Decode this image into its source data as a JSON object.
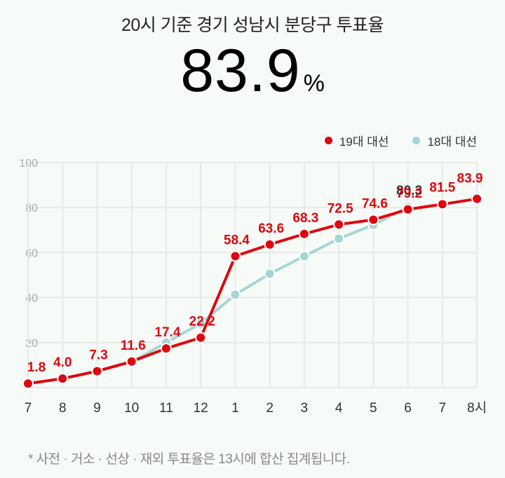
{
  "header": {
    "title": "20시 기준 경기 성남시 분당구 투표율",
    "turnout_value": "83.9",
    "turnout_unit": "%"
  },
  "legend": [
    {
      "label": "19대 대선",
      "color": "#e0060f"
    },
    {
      "label": "18대 대선",
      "color": "#a5d6d6"
    }
  ],
  "footnote": "* 사전 · 거소 · 선상 · 재외 투표율은 13시에 합산 집계됩니다.",
  "colors": {
    "series19": "#e0060f",
    "series18": "#a5d6d6",
    "grid": "#e6e9e6",
    "axis_text": "#aaaaaa",
    "tick_text": "#333333"
  },
  "chart_data": {
    "type": "line",
    "title": "20시 기준 경기 성남시 분당구 투표율",
    "xlabel": "",
    "ylabel": "",
    "categories": [
      "7",
      "8",
      "9",
      "10",
      "11",
      "12",
      "1",
      "2",
      "3",
      "4",
      "5",
      "6",
      "7",
      "8시"
    ],
    "ylim": [
      0,
      100
    ],
    "yticks": [
      20,
      40,
      60,
      80,
      100
    ],
    "grid": true,
    "legend_position": "top-right",
    "series": [
      {
        "name": "19대 대선",
        "values": [
          1.8,
          4.0,
          7.3,
          11.6,
          17.4,
          22.2,
          58.4,
          63.6,
          68.3,
          72.5,
          74.6,
          79.2,
          81.5,
          83.9
        ],
        "labels": [
          "1.8",
          "4.0",
          "7.3",
          "11.6",
          "17.4",
          "22.2",
          "58.4",
          "63.6",
          "68.3",
          "72.5",
          "74.6",
          "79.2",
          "81.5",
          "83.9"
        ]
      },
      {
        "name": "18대 대선",
        "values": [
          1.8,
          4.0,
          7.3,
          11.4,
          20.0,
          28.5,
          41.3,
          50.6,
          58.4,
          66.2,
          72.3,
          80.3,
          null,
          null
        ],
        "labels": [
          null,
          null,
          null,
          null,
          null,
          null,
          null,
          null,
          null,
          null,
          null,
          "80.3",
          null,
          null
        ]
      }
    ]
  }
}
